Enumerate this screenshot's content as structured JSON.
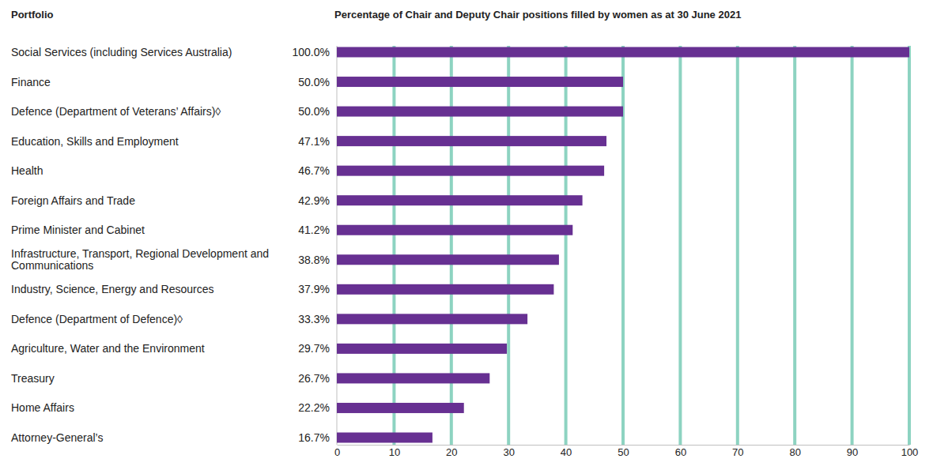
{
  "chart_data": {
    "type": "bar",
    "orientation": "horizontal",
    "title": "Percentage of Chair and Deputy Chair positions filled by women as at 30 June 2021",
    "ylabel": "Portfolio",
    "categories": [
      "Social Services (including Services Australia)",
      "Finance",
      "Defence (Department of Veterans’ Affairs)◊",
      "Education, Skills and Employment",
      "Health",
      "Foreign Affairs and Trade",
      "Prime Minister and Cabinet",
      "Infrastructure, Transport, Regional Development and Communications",
      "Industry, Science, Energy and Resources",
      "Defence (Department of Defence)◊",
      "Agriculture, Water and the Environment",
      "Treasury",
      "Home Affairs",
      "Attorney-General’s"
    ],
    "values": [
      100.0,
      50.0,
      50.0,
      47.1,
      46.7,
      42.9,
      41.2,
      38.8,
      37.9,
      33.3,
      29.7,
      26.7,
      22.2,
      16.7
    ],
    "value_labels": [
      "100.0%",
      "50.0%",
      "50.0%",
      "47.1%",
      "46.7%",
      "42.9%",
      "41.2%",
      "38.8%",
      "37.9%",
      "33.3%",
      "29.7%",
      "26.7%",
      "22.2%",
      "16.7%"
    ],
    "data_labels": true,
    "color": "#673092",
    "xlim": [
      0,
      100
    ],
    "xticks": [
      0,
      10,
      20,
      30,
      40,
      50,
      60,
      70,
      80,
      90,
      100
    ],
    "grid": true
  }
}
